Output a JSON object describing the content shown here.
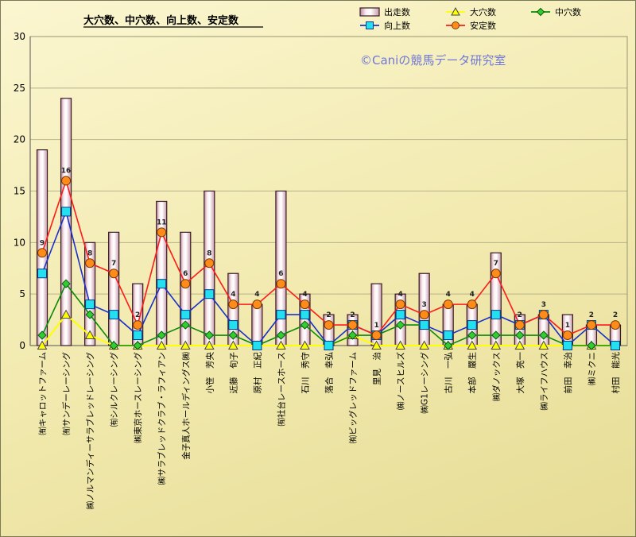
{
  "chart_data": {
    "type": "bar",
    "title": "大穴数、中穴数、向上数、安定数",
    "watermark": "©Caniの競馬データ研究室",
    "ylim": [
      0,
      30
    ],
    "yticks": [
      0,
      5,
      10,
      15,
      20,
      25,
      30
    ],
    "grid": true,
    "legend_position": "top-right",
    "categories": [
      "㈲キャロットファーム",
      "㈲サンデーレーシング",
      "㈱ノルマンディーサラブレッドレーシング",
      "㈲シルクレーシング",
      "㈱東京ホースレーシング",
      "㈱サラブレッドクラブ・ラフィアン",
      "金子真人ホールディングス㈱",
      "小笹　芳央",
      "近藤　旬子",
      "原村　正紀",
      "㈲社台レースホース",
      "石川　秀守",
      "落合　幸弘",
      "㈲ビッグレッドファーム",
      "里見　治",
      "㈱ノースヒルズ",
      "㈱G1レーシング",
      "古川　一弘",
      "本部　嚴生",
      "㈱ダノックス",
      "大塚　亮一",
      "㈱ライフハウス",
      "前田　幸治",
      "㈱ミクニ",
      "村田　能光"
    ],
    "series": [
      {
        "name": "出走数",
        "type": "bar",
        "color": "#f4dce6",
        "values": [
          19,
          24,
          10,
          11,
          6,
          14,
          11,
          15,
          7,
          4,
          15,
          5,
          3,
          3,
          6,
          5,
          7,
          4,
          4,
          9,
          3,
          3,
          3,
          2,
          2
        ]
      },
      {
        "name": "大穴数",
        "type": "line",
        "color": "#ffff00",
        "values": [
          0,
          3,
          1,
          0,
          0,
          0,
          0,
          0,
          0,
          0,
          0,
          0,
          0,
          1,
          0,
          0,
          0,
          0,
          0,
          0,
          0,
          0,
          0,
          0,
          0
        ]
      },
      {
        "name": "中穴数",
        "type": "line",
        "color": "#0a8a0a",
        "values": [
          1,
          6,
          3,
          0,
          0,
          1,
          2,
          1,
          1,
          0,
          1,
          2,
          0,
          1,
          1,
          2,
          2,
          0,
          1,
          1,
          1,
          1,
          0,
          0,
          0
        ]
      },
      {
        "name": "向上数",
        "type": "line",
        "color": "#1a2fcc",
        "values": [
          7,
          13,
          4,
          3,
          1,
          6,
          3,
          5,
          2,
          0,
          3,
          3,
          0,
          2,
          1,
          3,
          2,
          1,
          2,
          3,
          2,
          3,
          0,
          2,
          0
        ]
      },
      {
        "name": "安定数",
        "type": "line",
        "color": "#ff1a1a",
        "values": [
          9,
          16,
          8,
          7,
          2,
          11,
          6,
          8,
          4,
          4,
          6,
          4,
          2,
          2,
          1,
          4,
          3,
          4,
          4,
          7,
          2,
          3,
          1,
          2,
          2
        ]
      }
    ],
    "data_labels": {
      "series": "安定数",
      "values": [
        "9",
        "16",
        "8",
        "7",
        "2",
        "11",
        "6",
        "8",
        "4",
        "4",
        "6",
        "4",
        "2",
        "2",
        "1",
        "4",
        "3",
        "4",
        "4",
        "7",
        "2",
        "3",
        "1",
        "2",
        "2"
      ]
    }
  }
}
